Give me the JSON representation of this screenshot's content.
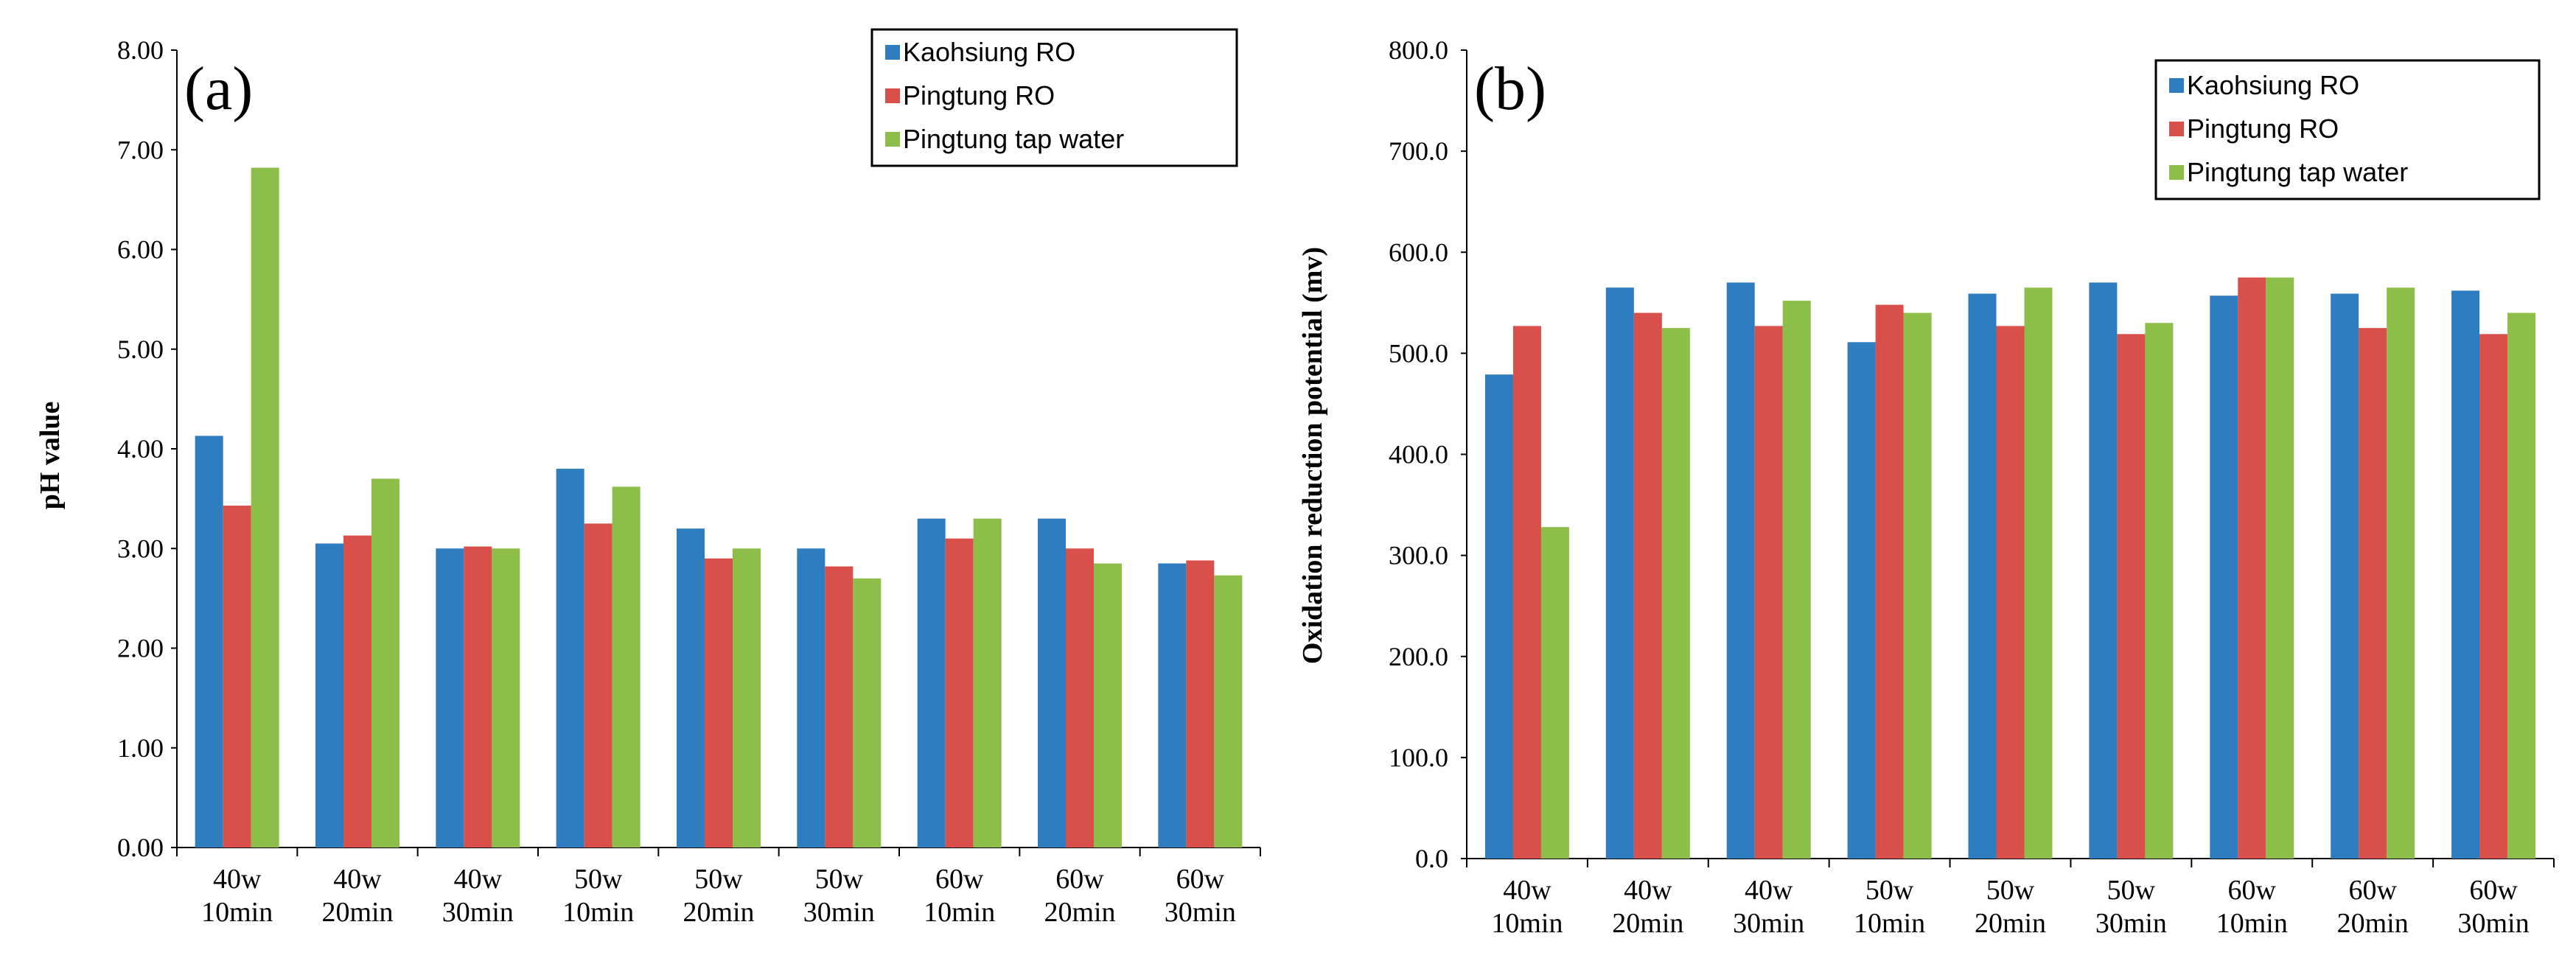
{
  "colors": {
    "kaohsiung_ro": "#2E7DC0",
    "pingtung_ro": "#D9504A",
    "pingtung_tap": "#8DBE4A"
  },
  "chart_data": [
    {
      "type": "bar",
      "panel": "(a)",
      "ylabel": "pH value",
      "xlabel": "",
      "ylim": [
        0,
        8
      ],
      "yticks": [
        "0.00",
        "1.00",
        "2.00",
        "3.00",
        "4.00",
        "5.00",
        "6.00",
        "7.00",
        "8.00"
      ],
      "categories": [
        [
          "40w",
          "10min"
        ],
        [
          "40w",
          "20min"
        ],
        [
          "40w",
          "30min"
        ],
        [
          "50w",
          "10min"
        ],
        [
          "50w",
          "20min"
        ],
        [
          "50w",
          "30min"
        ],
        [
          "60w",
          "10min"
        ],
        [
          "60w",
          "20min"
        ],
        [
          "60w",
          "30min"
        ]
      ],
      "series": [
        {
          "name": "Kaohsiung RO",
          "values": [
            4.13,
            3.05,
            3.0,
            3.8,
            3.2,
            3.0,
            3.3,
            3.3,
            2.85
          ]
        },
        {
          "name": "Pingtung RO",
          "values": [
            3.43,
            3.13,
            3.02,
            3.25,
            2.9,
            2.82,
            3.1,
            3.0,
            2.88
          ]
        },
        {
          "name": "Pingtung tap water",
          "values": [
            6.82,
            3.7,
            3.0,
            3.62,
            3.0,
            2.7,
            3.3,
            2.85,
            2.73
          ]
        }
      ],
      "legend": "top-right"
    },
    {
      "type": "bar",
      "panel": "(b)",
      "ylabel": "Oxidation reduction potential (mv)",
      "xlabel": "",
      "ylim": [
        0,
        800
      ],
      "yticks": [
        "0.0",
        "100.0",
        "200.0",
        "300.0",
        "400.0",
        "500.0",
        "600.0",
        "700.0",
        "800.0"
      ],
      "categories": [
        [
          "40w",
          "10min"
        ],
        [
          "40w",
          "20min"
        ],
        [
          "40w",
          "30min"
        ],
        [
          "50w",
          "10min"
        ],
        [
          "50w",
          "20min"
        ],
        [
          "50w",
          "30min"
        ],
        [
          "60w",
          "10min"
        ],
        [
          "60w",
          "20min"
        ],
        [
          "60w",
          "30min"
        ]
      ],
      "series": [
        {
          "name": "Kaohsiung RO",
          "values": [
            479,
            565,
            570,
            511,
            559,
            570,
            557,
            559,
            562
          ]
        },
        {
          "name": "Pingtung RO",
          "values": [
            527,
            540,
            527,
            548,
            527,
            519,
            575,
            525,
            519
          ]
        },
        {
          "name": "Pingtung tap water",
          "values": [
            328,
            525,
            552,
            540,
            565,
            530,
            575,
            565,
            540
          ]
        }
      ],
      "legend": "top-right"
    }
  ]
}
